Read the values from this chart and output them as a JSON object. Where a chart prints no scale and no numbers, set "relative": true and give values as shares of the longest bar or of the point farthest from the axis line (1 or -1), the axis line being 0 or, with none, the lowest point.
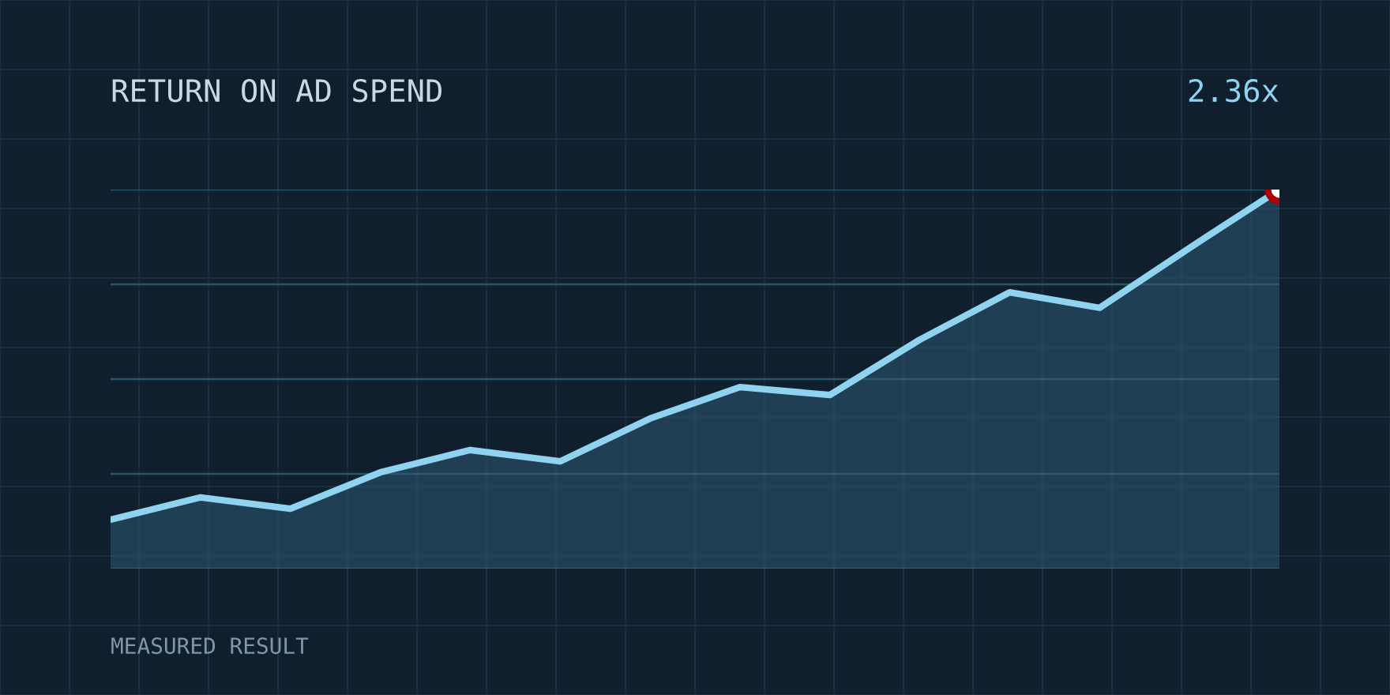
{
  "chart_data": {
    "type": "area",
    "title": "RETURN ON AD SPEND",
    "relative": true,
    "categories": [
      null,
      null,
      null,
      null,
      null,
      null,
      null,
      null,
      null,
      null,
      null,
      null,
      null,
      null
    ],
    "series": [
      {
        "color": "#8fd3f0",
        "values": [
          0.129,
          0.188,
          0.158,
          0.254,
          0.313,
          0.283,
          0.396,
          0.479,
          0.458,
          0.604,
          0.729,
          0.688,
          0.846,
          1.0
        ]
      }
    ],
    "annotations": [
      "2.36x",
      "MEASURED RESULT"
    ],
    "ref_lines": [
      {
        "axis": "y",
        "value": 0,
        "color": "#2a5468"
      },
      {
        "axis": "y",
        "value": 0.25,
        "color": "#2a5468"
      },
      {
        "axis": "y",
        "value": 0.5,
        "color": "#2a5468"
      },
      {
        "axis": "y",
        "value": 0.75,
        "color": "#2a5468"
      },
      {
        "axis": "y",
        "value": 1,
        "color": "#2a5468"
      }
    ],
    "legend": false
  }
}
